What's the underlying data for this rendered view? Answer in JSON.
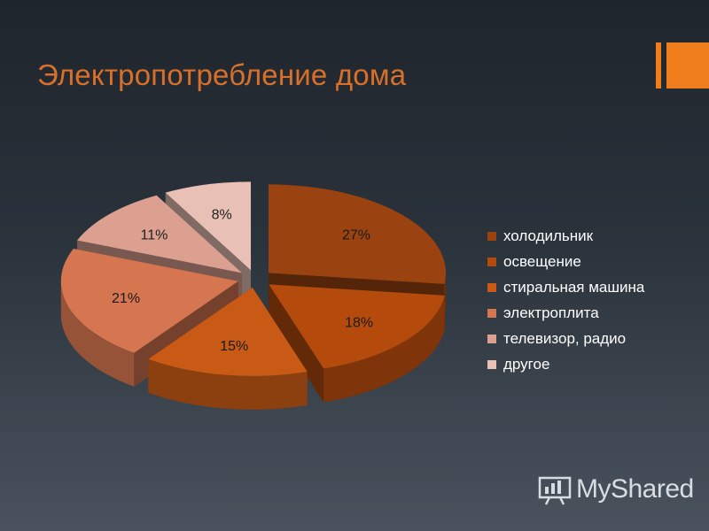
{
  "slide": {
    "title": "Электропотребление дома",
    "accent_color": "#f07d1c",
    "title_color": "#d9702a"
  },
  "chart_data": {
    "type": "pie",
    "title": "",
    "style": "3d-exploded",
    "categories": [
      "холодильник",
      "освещение",
      "стиральная машина",
      "электроплита",
      "телевизор, радио",
      "другое"
    ],
    "values": [
      27,
      18,
      15,
      21,
      11,
      8
    ],
    "data_labels": [
      "27%",
      "18%",
      "15%",
      "21%",
      "11%",
      "8%"
    ],
    "colors": [
      "#9b4310",
      "#b54a0d",
      "#c85a15",
      "#d67650",
      "#dba090",
      "#e8c0b6"
    ],
    "legend_position": "right"
  },
  "watermark": {
    "text": "MyShared",
    "icon": "presentation-board-icon"
  }
}
